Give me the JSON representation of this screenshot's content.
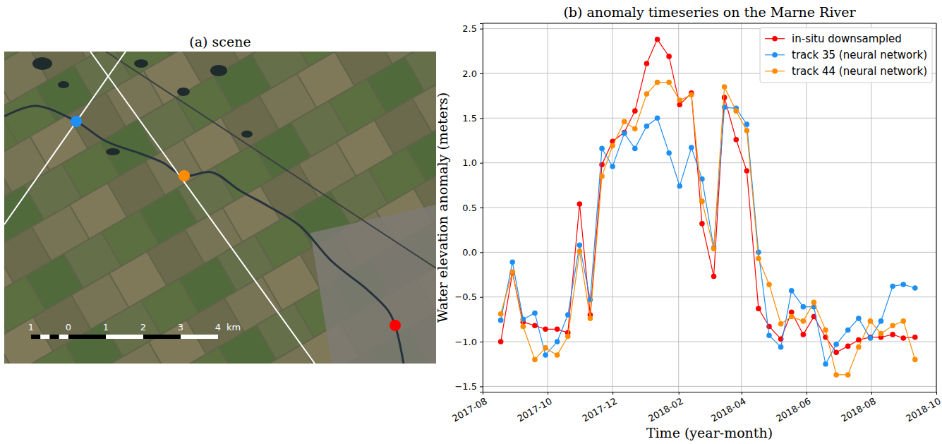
{
  "chart_data": [
    {
      "type": "image",
      "title": "(a) scene",
      "scale_bar": {
        "labels": [
          1,
          0,
          1,
          2,
          3,
          4
        ],
        "unit": "km"
      }
    },
    {
      "type": "line",
      "title": "(b) anomaly timeseries on the Marne River",
      "x_label": "Time (year-month)",
      "y_label": "Water elevation anomaly (meters)",
      "x": [
        "2017-08-18",
        "2017-08-29",
        "2017-09-08",
        "2017-09-19",
        "2017-09-29",
        "2017-10-10",
        "2017-10-20",
        "2017-10-31",
        "2017-11-10",
        "2017-11-21",
        "2017-12-01",
        "2017-12-12",
        "2017-12-22",
        "2018-01-02",
        "2018-01-12",
        "2018-01-23",
        "2018-02-02",
        "2018-02-13",
        "2018-02-23",
        "2018-03-06",
        "2018-03-16",
        "2018-03-27",
        "2018-04-06",
        "2018-04-17",
        "2018-04-27",
        "2018-05-08",
        "2018-05-18",
        "2018-05-29",
        "2018-06-08",
        "2018-06-19",
        "2018-06-29",
        "2018-07-10",
        "2018-07-20",
        "2018-07-31",
        "2018-08-10",
        "2018-08-21",
        "2018-08-31",
        "2018-09-11"
      ],
      "series": [
        {
          "name": "in-situ downsampled",
          "color": "#ff0000",
          "marker": "o",
          "line_style": "solid",
          "values": [
            -1.0,
            -0.23,
            -0.78,
            -0.82,
            -0.86,
            -0.86,
            -0.9,
            0.54,
            -0.7,
            0.98,
            1.24,
            1.34,
            1.58,
            2.11,
            2.38,
            2.19,
            1.65,
            1.78,
            0.32,
            -0.27,
            1.73,
            1.26,
            0.91,
            -0.63,
            -0.83,
            -0.97,
            -0.67,
            -0.92,
            -0.72,
            -0.95,
            -1.12,
            -1.05,
            -0.98,
            -0.95,
            -0.95,
            -0.92,
            -0.96,
            -0.95
          ]
        },
        {
          "name": "track 35 (neural network)",
          "color": "#1e8ff5",
          "marker": "o",
          "line_style": "solid",
          "values": [
            -0.76,
            -0.11,
            -0.75,
            -0.68,
            -1.15,
            -1.0,
            -0.7,
            0.08,
            -0.53,
            1.16,
            0.96,
            1.33,
            1.16,
            1.41,
            1.5,
            1.11,
            0.74,
            1.17,
            0.82,
            0.05,
            1.62,
            1.61,
            1.43,
            0.0,
            -0.93,
            -1.06,
            -0.43,
            -0.61,
            -0.61,
            -1.25,
            -1.03,
            -0.87,
            -0.74,
            -0.96,
            -0.77,
            -0.38,
            -0.36,
            -0.4
          ]
        },
        {
          "name": "track 44 (neural network)",
          "color": "#ff8c00",
          "marker": "o",
          "line_style": "solid",
          "values": [
            -0.69,
            -0.22,
            -0.83,
            -1.2,
            -1.07,
            -1.15,
            -0.94,
            0.01,
            -0.74,
            0.85,
            1.19,
            1.46,
            1.38,
            1.77,
            1.9,
            1.9,
            1.7,
            1.76,
            0.57,
            0.04,
            1.85,
            1.58,
            1.36,
            -0.07,
            -0.36,
            -0.8,
            -0.72,
            -0.77,
            -0.56,
            -0.87,
            -1.37,
            -1.37,
            -1.06,
            -0.77,
            -0.91,
            -0.82,
            -0.77,
            -1.2
          ]
        }
      ],
      "xlim": [
        "2017-08-01",
        "2018-10-01"
      ],
      "xticks": [
        {
          "value": "2017-08-01",
          "label": "2017-08"
        },
        {
          "value": "2017-10-01",
          "label": "2017-10"
        },
        {
          "value": "2017-12-01",
          "label": "2017-12"
        },
        {
          "value": "2018-02-01",
          "label": "2018-02"
        },
        {
          "value": "2018-04-01",
          "label": "2018-04"
        },
        {
          "value": "2018-06-01",
          "label": "2018-06"
        },
        {
          "value": "2018-08-01",
          "label": "2018-08"
        },
        {
          "value": "2018-10-01",
          "label": "2018-10"
        }
      ],
      "ylim": [
        -1.56,
        2.56
      ],
      "yticks": [
        {
          "value": -1.5,
          "label": "−1.5"
        },
        {
          "value": -1,
          "label": "−1.0"
        },
        {
          "value": -0.5,
          "label": "−0.5"
        },
        {
          "value": 0,
          "label": "0.0"
        },
        0.5,
        {
          "value": 1,
          "label": "1.0"
        },
        1.5,
        {
          "value": 2,
          "label": "2.0"
        },
        2.5
      ],
      "grid": true,
      "legend": "upper right"
    }
  ]
}
